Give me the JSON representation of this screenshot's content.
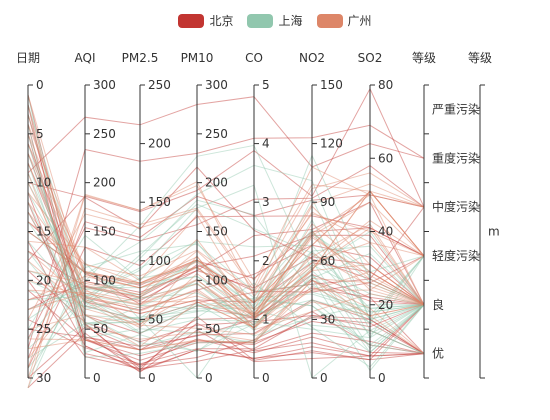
{
  "legend": [
    {
      "name": "北京",
      "color": "#c23531"
    },
    {
      "name": "上海",
      "color": "#91c7ae"
    },
    {
      "name": "广州",
      "color": "#dd8668"
    }
  ],
  "chart_data": {
    "type": "parallel",
    "title": "",
    "axes": [
      {
        "name": "日期",
        "type": "value",
        "min": 0,
        "max": 30,
        "inverse": true,
        "ticks": [
          0,
          5,
          10,
          15,
          20,
          25,
          30
        ]
      },
      {
        "name": "AQI",
        "type": "value",
        "min": 0,
        "max": 300,
        "ticks": [
          0,
          50,
          100,
          150,
          200,
          250,
          300
        ]
      },
      {
        "name": "PM2.5",
        "type": "value",
        "min": 0,
        "max": 250,
        "ticks": [
          0,
          50,
          100,
          150,
          200,
          250
        ]
      },
      {
        "name": "PM10",
        "type": "value",
        "min": 0,
        "max": 300,
        "ticks": [
          0,
          50,
          100,
          150,
          200,
          250,
          300
        ]
      },
      {
        "name": "CO",
        "type": "value",
        "min": 0,
        "max": 5,
        "ticks": [
          0,
          1,
          2,
          3,
          4,
          5
        ]
      },
      {
        "name": "NO2",
        "type": "value",
        "min": 0,
        "max": 150,
        "ticks": [
          0,
          30,
          60,
          90,
          120,
          150
        ]
      },
      {
        "name": "SO2",
        "type": "value",
        "min": 0,
        "max": 80,
        "ticks": [
          0,
          20,
          40,
          60,
          80
        ]
      },
      {
        "name": "等级",
        "type": "category",
        "categories": [
          "优",
          "良",
          "轻度污染",
          "中度污染",
          "重度污染",
          "严重污染"
        ]
      },
      {
        "name": "等级",
        "type": "category",
        "categories": [
          "m"
        ]
      }
    ],
    "series": [
      {
        "name": "北京",
        "color": "#c23531",
        "data": [
          [
            1,
            55,
            9,
            56,
            0.46,
            18,
            6,
            "良"
          ],
          [
            2,
            25,
            11,
            21,
            0.65,
            34,
            9,
            "优"
          ],
          [
            3,
            56,
            7,
            63,
            0.3,
            14,
            5,
            "良"
          ],
          [
            4,
            33,
            7,
            29,
            0.33,
            16,
            6,
            "优"
          ],
          [
            5,
            42,
            24,
            44,
            0.76,
            40,
            16,
            "优"
          ],
          [
            6,
            82,
            58,
            90,
            1.77,
            68,
            33,
            "良"
          ],
          [
            7,
            74,
            49,
            77,
            1.46,
            48,
            27,
            "良"
          ],
          [
            8,
            78,
            55,
            80,
            1.29,
            59,
            29,
            "良"
          ],
          [
            9,
            267,
            216,
            280,
            4.8,
            108,
            64,
            "重度污染"
          ],
          [
            10,
            185,
            127,
            216,
            2.52,
            61,
            27,
            "中度污染"
          ],
          [
            11,
            39,
            19,
            38,
            0.57,
            31,
            15,
            "优"
          ],
          [
            12,
            41,
            11,
            40,
            0.43,
            21,
            7,
            "优"
          ],
          [
            13,
            64,
            38,
            74,
            1.04,
            46,
            22,
            "良"
          ],
          [
            14,
            108,
            79,
            120,
            1.7,
            75,
            41,
            "轻度污染"
          ],
          [
            15,
            108,
            63,
            116,
            1.48,
            44,
            26,
            "轻度污染"
          ],
          [
            16,
            33,
            6,
            29,
            0.34,
            13,
            5,
            "优"
          ],
          [
            17,
            94,
            66,
            110,
            1.54,
            62,
            31,
            "良"
          ],
          [
            18,
            186,
            142,
            192,
            3.88,
            93,
            79,
            "中度污染"
          ],
          [
            19,
            57,
            31,
            54,
            0.96,
            32,
            14,
            "良"
          ],
          [
            20,
            22,
            8,
            17,
            0.48,
            23,
            10,
            "优"
          ],
          [
            21,
            39,
            15,
            36,
            0.61,
            29,
            13,
            "优"
          ],
          [
            22,
            94,
            69,
            114,
            2.08,
            73,
            39,
            "良"
          ],
          [
            23,
            99,
            73,
            110,
            2.43,
            76,
            48,
            "良"
          ],
          [
            24,
            31,
            12,
            30,
            0.5,
            32,
            16,
            "优"
          ],
          [
            25,
            42,
            27,
            43,
            1,
            53,
            22,
            "优"
          ],
          [
            26,
            154,
            117,
            157,
            3.05,
            92,
            58,
            "中度污染"
          ],
          [
            27,
            234,
            185,
            230,
            4.09,
            123,
            69,
            "重度污染"
          ],
          [
            28,
            160,
            120,
            186,
            2.77,
            91,
            50,
            "中度污染"
          ],
          [
            29,
            134,
            96,
            165,
            2.76,
            83,
            41,
            "轻度污染"
          ],
          [
            30,
            52,
            24,
            60,
            1.03,
            50,
            21,
            "良"
          ],
          [
            31,
            46,
            5,
            49,
            0.28,
            10,
            6,
            "优"
          ]
        ]
      },
      {
        "name": "上海",
        "color": "#91c7ae",
        "data": [
          [
            1,
            26,
            37,
            27,
            1.163,
            27,
            13,
            "优"
          ],
          [
            2,
            85,
            62,
            71,
            1.195,
            60,
            8,
            "良"
          ],
          [
            3,
            78,
            38,
            74,
            1.363,
            37,
            7,
            "良"
          ],
          [
            4,
            21,
            21,
            36,
            0.634,
            40,
            9,
            "优"
          ],
          [
            5,
            41,
            42,
            46,
            0.915,
            81,
            13,
            "优"
          ],
          [
            6,
            56,
            52,
            69,
            1.067,
            92,
            16,
            "良"
          ],
          [
            7,
            64,
            30,
            28,
            0.924,
            51,
            2,
            "良"
          ],
          [
            8,
            55,
            48,
            74,
            1.236,
            75,
            26,
            "良"
          ],
          [
            9,
            76,
            85,
            113,
            1.237,
            114,
            27,
            "良"
          ],
          [
            10,
            91,
            81,
            104,
            1.041,
            56,
            40,
            "良"
          ],
          [
            11,
            84,
            39,
            60,
            0.964,
            25,
            11,
            "良"
          ],
          [
            12,
            64,
            51,
            101,
            0.862,
            58,
            23,
            "良"
          ],
          [
            13,
            70,
            69,
            120,
            1.198,
            65,
            36,
            "良"
          ],
          [
            14,
            77,
            105,
            178,
            2.549,
            64,
            16,
            "良"
          ],
          [
            15,
            109,
            68,
            87,
            0.996,
            74,
            29,
            "轻度污染"
          ],
          [
            16,
            73,
            68,
            97,
            0.905,
            51,
            34,
            "良"
          ],
          [
            17,
            54,
            27,
            47,
            0.592,
            53,
            12,
            "良"
          ],
          [
            18,
            51,
            61,
            97,
            0.811,
            65,
            19,
            "良"
          ],
          [
            19,
            91,
            71,
            121,
            1.374,
            43,
            18,
            "良"
          ],
          [
            20,
            73,
            102,
            182,
            2.787,
            44,
            19,
            "良"
          ],
          [
            21,
            73,
            50,
            76,
            0.717,
            31,
            20,
            "良"
          ],
          [
            22,
            84,
            94,
            140,
            2.238,
            68,
            18,
            "良"
          ],
          [
            23,
            93,
            77,
            104,
            1.165,
            53,
            7,
            "良"
          ],
          [
            24,
            99,
            130,
            227,
            3.97,
            55,
            15,
            "良"
          ],
          [
            25,
            146,
            84,
            139,
            1.094,
            40,
            17,
            "轻度污染"
          ],
          [
            26,
            113,
            108,
            137,
            1.481,
            48,
            15,
            "轻度污染"
          ],
          [
            27,
            81,
            48,
            62,
            1.619,
            26,
            3,
            "良"
          ],
          [
            28,
            56,
            48,
            68,
            1.336,
            37,
            9,
            "良"
          ],
          [
            29,
            82,
            92,
            174,
            3.29,
            0,
            13,
            "良"
          ],
          [
            30,
            106,
            116,
            188,
            3.628,
            101,
            16,
            "轻度污染"
          ],
          [
            31,
            118,
            50,
            0,
            1.383,
            76,
            11,
            "轻度污染"
          ]
        ]
      },
      {
        "name": "广州",
        "color": "#dd8668",
        "data": [
          [
            1,
            91,
            45,
            125,
            0.82,
            34,
            23,
            "良"
          ],
          [
            2,
            65,
            27,
            78,
            0.86,
            45,
            29,
            "良"
          ],
          [
            3,
            83,
            60,
            84,
            1.09,
            73,
            27,
            "良"
          ],
          [
            4,
            109,
            81,
            121,
            1.28,
            68,
            51,
            "轻度污染"
          ],
          [
            5,
            106,
            77,
            114,
            1.07,
            55,
            51,
            "轻度污染"
          ],
          [
            6,
            109,
            81,
            121,
            1.28,
            68,
            51,
            "轻度污染"
          ],
          [
            7,
            106,
            77,
            114,
            1.07,
            55,
            51,
            "轻度污染"
          ],
          [
            8,
            89,
            65,
            78,
            0.86,
            51,
            26,
            "良"
          ],
          [
            9,
            53,
            33,
            47,
            0.64,
            50,
            17,
            "良"
          ],
          [
            10,
            80,
            55,
            80,
            1.01,
            75,
            24,
            "良"
          ],
          [
            11,
            117,
            81,
            124,
            1.03,
            45,
            24,
            "轻度污染"
          ],
          [
            12,
            99,
            71,
            142,
            1.1,
            62,
            42,
            "良"
          ],
          [
            13,
            95,
            69,
            130,
            1.28,
            74,
            50,
            "良"
          ],
          [
            14,
            116,
            87,
            131,
            1.47,
            84,
            40,
            "轻度污染"
          ],
          [
            15,
            108,
            80,
            121,
            1.3,
            85,
            37,
            "轻度污染"
          ],
          [
            16,
            134,
            83,
            167,
            1.16,
            57,
            43,
            "轻度污染"
          ],
          [
            17,
            79,
            43,
            107,
            1.05,
            59,
            37,
            "良"
          ],
          [
            18,
            71,
            46,
            89,
            0.86,
            64,
            25,
            "良"
          ],
          [
            19,
            97,
            71,
            113,
            1.17,
            88,
            31,
            "良"
          ],
          [
            20,
            84,
            57,
            91,
            0.85,
            55,
            31,
            "良"
          ],
          [
            21,
            87,
            63,
            101,
            0.9,
            56,
            41,
            "良"
          ],
          [
            22,
            104,
            77,
            119,
            1.09,
            73,
            48,
            "轻度污染"
          ],
          [
            23,
            87,
            62,
            100,
            1,
            72,
            28,
            "良"
          ],
          [
            24,
            168,
            128,
            172,
            1.49,
            97,
            56,
            "中度污染"
          ],
          [
            25,
            65,
            45,
            51,
            0.74,
            39,
            17,
            "良"
          ],
          [
            26,
            39,
            24,
            38,
            0.61,
            47,
            17,
            "优"
          ],
          [
            27,
            39,
            24,
            39,
            0.59,
            50,
            19,
            "优"
          ],
          [
            28,
            93,
            68,
            96,
            1.05,
            79,
            29,
            "良"
          ],
          [
            29,
            188,
            143,
            197,
            1.66,
            99,
            51,
            "中度污染"
          ],
          [
            30,
            174,
            131,
            174,
            1.55,
            108,
            50,
            "中度污染"
          ],
          [
            31,
            187,
            143,
            201,
            1.39,
            89,
            53,
            "中度污染"
          ]
        ]
      }
    ]
  }
}
